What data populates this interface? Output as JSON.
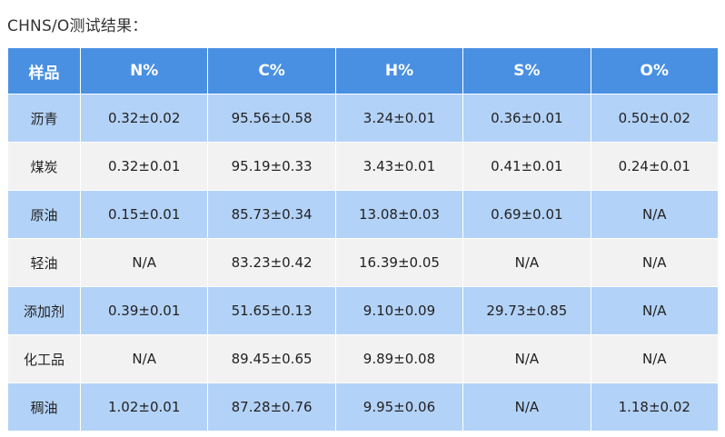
{
  "heading": "CHNS/O测试结果：",
  "table": {
    "headers": [
      "样品",
      "N%",
      "C%",
      "H%",
      "S%",
      "O%"
    ],
    "rows": [
      [
        "沥青",
        "0.32±0.02",
        "95.56±0.58",
        "3.24±0.01",
        "0.36±0.01",
        "0.50±0.02"
      ],
      [
        "煤炭",
        "0.32±0.01",
        "95.19±0.33",
        "3.43±0.01",
        "0.41±0.01",
        "0.24±0.01"
      ],
      [
        "原油",
        "0.15±0.01",
        "85.73±0.34",
        "13.08±0.03",
        "0.69±0.01",
        "N/A"
      ],
      [
        "轻油",
        "N/A",
        "83.23±0.42",
        "16.39±0.05",
        "N/A",
        "N/A"
      ],
      [
        "添加剂",
        "0.39±0.01",
        "51.65±0.13",
        "9.10±0.09",
        "29.73±0.85",
        "N/A"
      ],
      [
        "化工品",
        "N/A",
        "89.45±0.65",
        "9.89±0.08",
        "N/A",
        "N/A"
      ],
      [
        "稠油",
        "1.02±0.01",
        "87.28±0.76",
        "9.95±0.06",
        "N/A",
        "1.18±0.02"
      ]
    ]
  },
  "colors": {
    "header_bg": "#4a90e2",
    "row_blue": "#b3d2f7",
    "row_gray": "#f2f2f2"
  }
}
